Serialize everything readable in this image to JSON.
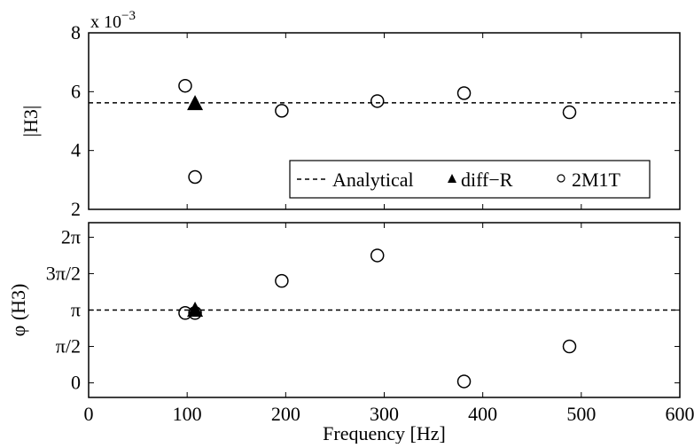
{
  "chart_data": [
    {
      "type": "scatter",
      "title": "",
      "xlabel": "",
      "ylabel": "|H3|",
      "exponent_label": "x 10",
      "exponent_power": "−3",
      "xlim": [
        0,
        600
      ],
      "ylim": [
        2,
        8
      ],
      "yticks": [
        {
          "v": 2,
          "label": "2"
        },
        {
          "v": 4,
          "label": "4"
        },
        {
          "v": 6,
          "label": "6"
        },
        {
          "v": 8,
          "label": "8"
        }
      ],
      "xticks": [
        0,
        100,
        200,
        300,
        400,
        500,
        600
      ],
      "grid": false,
      "legend_position": "bottom-right",
      "legend": [
        {
          "label": "Analytical",
          "style": "dashed-line"
        },
        {
          "label": "diff−R",
          "style": "filled-triangle"
        },
        {
          "label": "2M1T",
          "style": "open-circle"
        }
      ],
      "series": [
        {
          "name": "Analytical",
          "style": "dashed-line",
          "y": 5.62
        },
        {
          "name": "diff−R",
          "style": "filled-triangle",
          "points": [
            [
              108,
              5.6
            ]
          ]
        },
        {
          "name": "2M1T",
          "style": "open-circle",
          "points": [
            [
              98,
              6.2
            ],
            [
              108,
              3.1
            ],
            [
              196,
              5.35
            ],
            [
              293,
              5.68
            ],
            [
              381,
              5.95
            ],
            [
              488,
              5.3
            ]
          ]
        }
      ]
    },
    {
      "type": "scatter",
      "title": "",
      "xlabel": "Frequency [Hz]",
      "ylabel": "φ (H3)",
      "xlim": [
        0,
        600
      ],
      "ylim": [
        -0.2,
        2.2
      ],
      "yticks": [
        {
          "v": 0,
          "label": "0"
        },
        {
          "v": 0.5,
          "label": "π/2"
        },
        {
          "v": 1,
          "label": "π"
        },
        {
          "v": 1.5,
          "label": "3π/2"
        },
        {
          "v": 2,
          "label": "2π"
        }
      ],
      "xticks": [
        0,
        100,
        200,
        300,
        400,
        500,
        600
      ],
      "grid": false,
      "series": [
        {
          "name": "Analytical",
          "style": "dashed-line",
          "y": 1.0
        },
        {
          "name": "diff−R",
          "style": "filled-triangle",
          "points": [
            [
              108,
              1.0
            ]
          ]
        },
        {
          "name": "2M1T",
          "style": "open-circle",
          "points": [
            [
              98,
              0.96
            ],
            [
              108,
              0.96
            ],
            [
              196,
              1.4
            ],
            [
              293,
              1.75
            ],
            [
              381,
              0.02
            ],
            [
              488,
              0.5
            ]
          ]
        }
      ]
    }
  ]
}
